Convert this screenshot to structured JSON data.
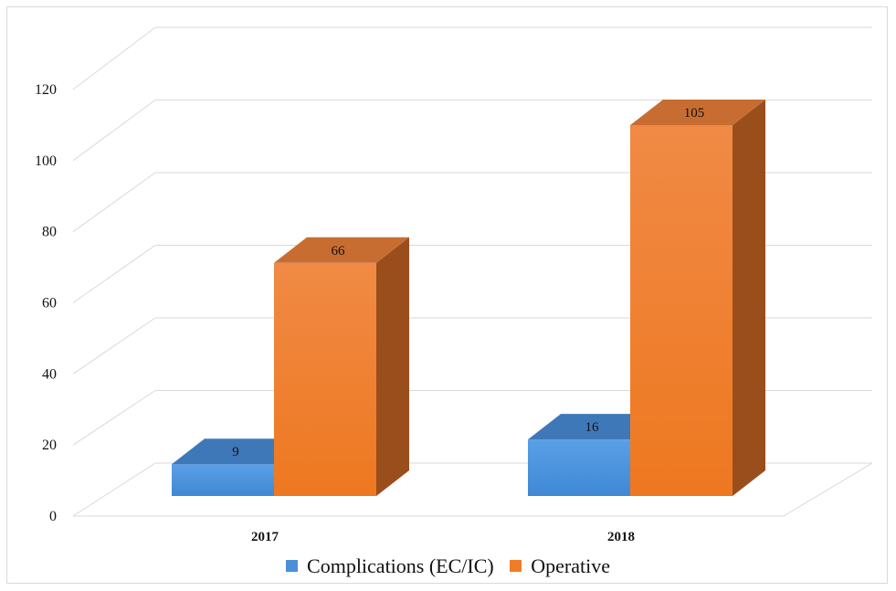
{
  "chart_data": {
    "type": "bar",
    "categories": [
      "2017",
      "2018"
    ],
    "series": [
      {
        "name": "Complications (EC/IC)",
        "values": [
          9,
          16
        ],
        "color": "#4a90d9"
      },
      {
        "name": "Operative",
        "values": [
          66,
          105
        ],
        "color": "#f07c27"
      }
    ],
    "ylim": [
      0,
      120
    ],
    "yticks": [
      0,
      20,
      40,
      60,
      80,
      100,
      120
    ],
    "grid": true,
    "legend": "bottom",
    "style": "3d-column"
  }
}
